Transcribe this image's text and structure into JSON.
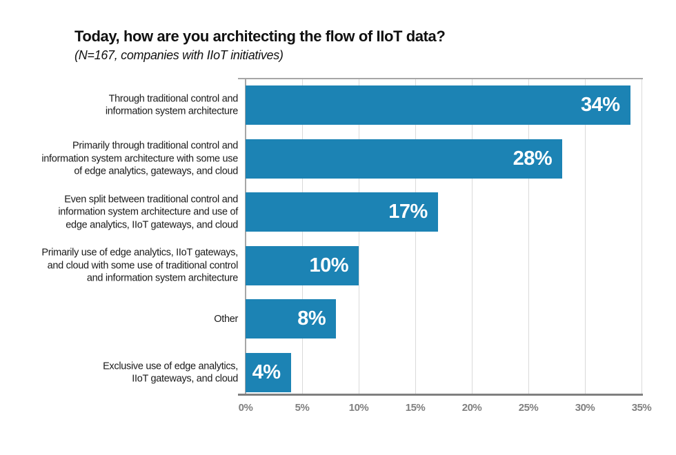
{
  "title": "Today, how are you architecting the flow of IIoT data?",
  "subtitle": "(N=167, companies with IIoT initiatives)",
  "colors": {
    "bar": "#1c83b4",
    "grid": "#d9d9d9",
    "axis": "#a6a6a6",
    "axis_bottom": "#7f7f7f",
    "tick_text": "#808080",
    "value_text": "#ffffff",
    "background": "#ffffff"
  },
  "chart_data": {
    "type": "bar",
    "orientation": "horizontal",
    "title": "Today, how are you architecting the flow of IIoT data?",
    "subtitle": "(N=167, companies with IIoT initiatives)",
    "categories": [
      "Through traditional control and\ninformation system architecture",
      "Primarily through traditional control and\ninformation system architecture with some use\nof edge analytics, gateways, and cloud",
      "Even split between traditional control and\ninformation system architecture and use of\nedge analytics, IIoT gateways, and cloud",
      "Primarily use of edge analytics, IIoT gateways,\nand cloud with some use of traditional control\nand information system architecture",
      "Other",
      "Exclusive use of edge analytics,\nIIoT gateways, and cloud"
    ],
    "values": [
      34,
      28,
      17,
      10,
      8,
      4
    ],
    "value_labels": [
      "34%",
      "28%",
      "17%",
      "10%",
      "8%",
      "4%"
    ],
    "x_ticks": [
      "0%",
      "5%",
      "10%",
      "15%",
      "20%",
      "25%",
      "30%",
      "35%"
    ],
    "xlim": [
      0,
      35
    ],
    "xlabel": "",
    "ylabel": "",
    "grid": true,
    "legend": false
  }
}
